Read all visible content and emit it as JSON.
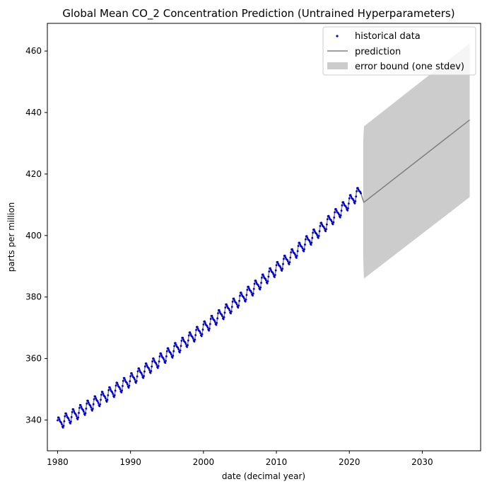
{
  "chart_data": {
    "type": "line",
    "title": "Global Mean CO_2 Concentration Prediction (Untrained Hyperparameters)",
    "xlabel": "date (decimal year)",
    "ylabel": "parts per million",
    "xlim": [
      1978.6,
      2038.0
    ],
    "ylim": [
      330.0,
      469.0
    ],
    "xticks": [
      1980,
      1990,
      2000,
      2010,
      2020,
      2030
    ],
    "yticks": [
      340,
      360,
      380,
      400,
      420,
      440,
      460
    ],
    "grid": false,
    "legend": {
      "placement": "top-right",
      "entries": [
        "historical data",
        "prediction",
        "error bound (one stdev)"
      ]
    },
    "historical": {
      "x_start": 1980.0,
      "x_end": 2021.6,
      "trend_at_start": 338.7,
      "trend_at_end": 414.6,
      "seasonal_amplitude": 1.8,
      "color": "#0000cc"
    },
    "prediction": {
      "color": "#808080",
      "x": [
        1980.0,
        2021.6,
        2021.8,
        2022.0,
        2036.5
      ],
      "y": [
        338.7,
        415.5,
        412.0,
        410.8,
        437.6
      ]
    },
    "error_bound": {
      "color": "#cccccc",
      "x": [
        2021.9,
        2022.0,
        2036.5
      ],
      "upper": [
        430.0,
        435.5,
        462.5
      ],
      "lower": [
        393.0,
        386.0,
        412.5
      ]
    },
    "colors": {
      "axes": "#000000",
      "legend_border": "#cccccc"
    }
  }
}
